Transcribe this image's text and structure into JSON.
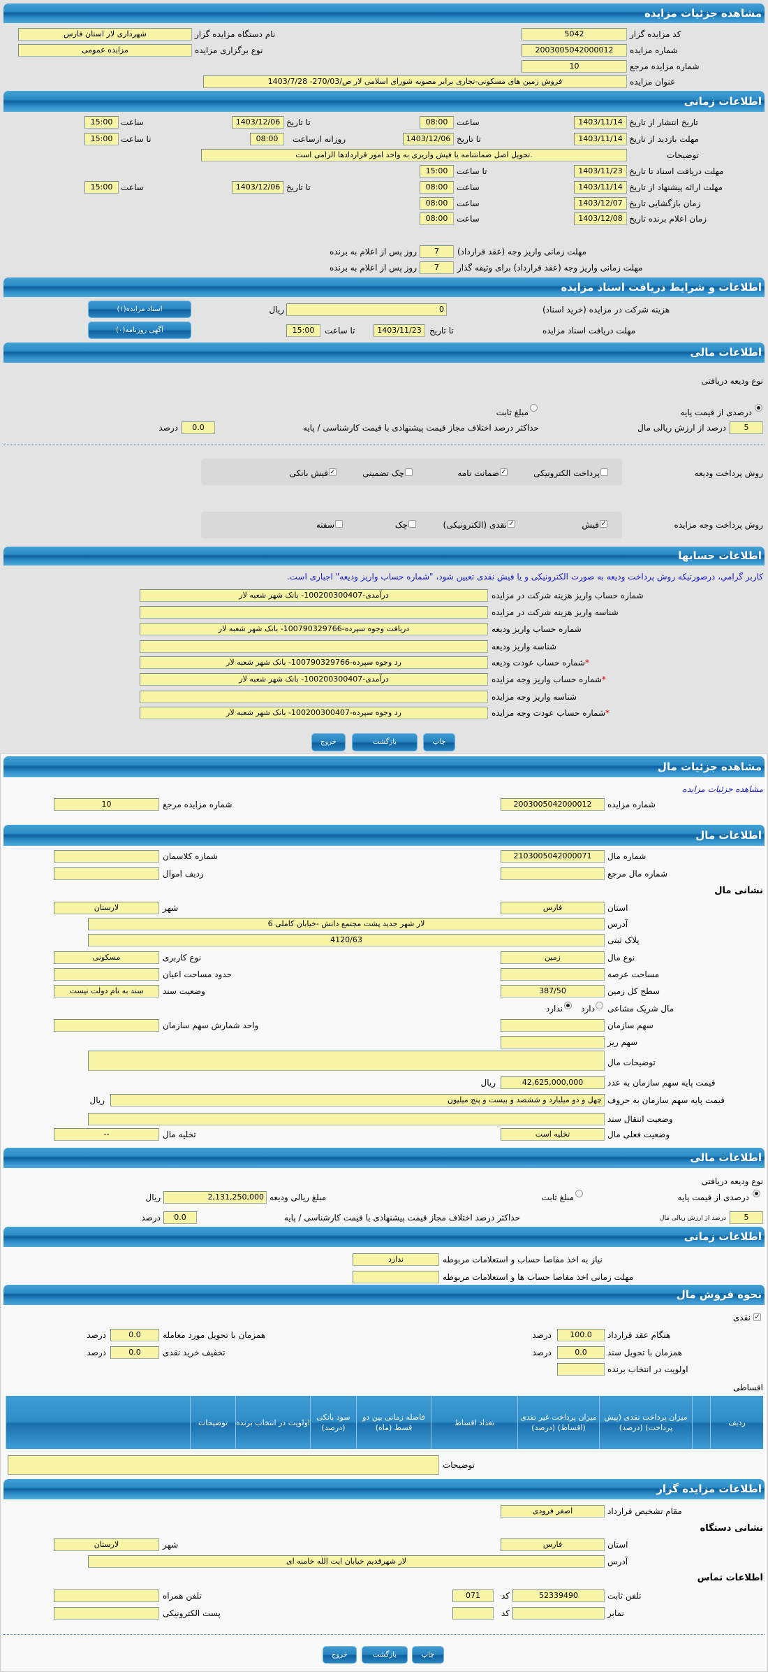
{
  "auction": {
    "title": "مشاهده جزئیات مزایده",
    "code_label": "کد مزایده گزار",
    "code": "5042",
    "org_label": "نام دستگاه مزایده گزار",
    "org": "شهرداری لار استان فارس",
    "number_label": "شماره مزایده",
    "number": "2003005042000012",
    "type_label": "نوع برگزاری مزایده",
    "type": "مزایده عمومی",
    "ref_label": "شماره مزایده مرجع",
    "ref": "10",
    "subject_label": "عنوان مزایده",
    "subject": "فروش زمین های مسکونی-تجاری برابر مصوبه شورای اسلامی لار ص/270/03- 1403/7/28"
  },
  "timing": {
    "title": "اطلاعات زمانی",
    "time_label": "ساعت",
    "to_date_label": "تا تاریخ",
    "to_time_label": "تا ساعت",
    "daily_from_label": "روزانه ازساعت",
    "publish_label": "تاریخ انتشار  از تاریخ",
    "publish_from": "1403/11/14",
    "publish_from_time": "08:00",
    "publish_to": "1403/12/06",
    "publish_to_time": "15:00",
    "visit_label": "مهلت بازدید  از تاریخ",
    "visit_from": "1403/11/14",
    "visit_to": "1403/12/06",
    "visit_daily_from": "08:00",
    "visit_daily_to": "15:00",
    "desc_label": "توضیحات",
    "desc": ".تحویل اصل ضمانتنامه  یا فیش واریزی به واحد امور قراردادها الزامی است",
    "docs_label": "مهلت دریافت اسناد  تا تاریخ",
    "docs_to": "1403/11/23",
    "docs_time": "15:00",
    "offer_label": "مهلت ارائه پیشنهاد  از تاریخ",
    "offer_from": "1403/11/14",
    "offer_from_time": "08:00",
    "offer_to": "1403/12/06",
    "offer_to_time": "15:00",
    "opening_label": "زمان بازگشایی   تاریخ",
    "opening_date": "1403/12/07",
    "opening_time": "08:00",
    "winner_label": "زمان اعلام برنده   تاریخ",
    "winner_date": "1403/12/08",
    "winner_time": "08:00",
    "pay_contract_label": "مهلت زمانی واریز وجه (عقد قرارداد)",
    "pay_contract_days": "7",
    "pay_collateral_label": "مهلت زمانی واریز وجه (عقد قرارداد) برای وثیقه گذار",
    "pay_collateral_days": "7",
    "days_after_label": "روز پس از اعلام به برنده"
  },
  "docs": {
    "title": "اطلاعات و شرایط دریافت اسناد مزایده",
    "fee_label": "هزینه شرکت در مزایده (خرید اسناد)",
    "fee": "0",
    "rial": "ریال",
    "deadline_label": "مهلت دریافت اسناد مزایده",
    "to_date": "تا تاریخ",
    "date": "1403/11/23",
    "to_time": "تا ساعت",
    "time": "15:00",
    "btn_docs": "اسناد مزایده(۱)",
    "btn_ads": "آگهی روزنامه(۰)"
  },
  "finance": {
    "title": "اطلاعات مالی",
    "deposit_type_label": "نوع ودیعه دریافتی",
    "percent_option": "درصدی از قیمت پایه",
    "percent_selected": true,
    "fixed_option": "مبلغ ثابت",
    "percent": "5",
    "percent_suffix": "درصد از ارزش ریالی مال",
    "max_diff_label": "حداکثر درصد اختلاف مجاز قیمت پیشنهادی با قیمت کارشناسی / پایه",
    "max_diff": "0.0",
    "percent_unit": "درصد",
    "deposit_method_label": "روش پرداخت ودیعه",
    "deposit_methods": [
      {
        "label": "پرداخت الکترونیکی",
        "checked": false
      },
      {
        "label": "ضمانت نامه",
        "checked": true
      },
      {
        "label": "چک تضمینی",
        "checked": false
      },
      {
        "label": "فیش بانکی",
        "checked": true
      }
    ],
    "payment_method_label": "روش پرداخت وجه مزایده",
    "payment_methods": [
      {
        "label": "فیش",
        "checked": true
      },
      {
        "label": "نقدی (الکترونیکی)",
        "checked": true
      },
      {
        "label": "چک",
        "checked": false
      },
      {
        "label": "سفته",
        "checked": false
      }
    ]
  },
  "accounts": {
    "title": "اطلاعات حسابها",
    "notice": "کاربر گرامي، درصورتيکه روش پرداخت وديعه به صورت الکترونيکی و يا فيش نقدی تعيين شود، \"شماره حساب واريز وديعه\" اجباری است.",
    "rows": [
      {
        "label": "شماره حساب واریز هزینه شرکت در مزایده",
        "value": "درآمدی-100200300407- بانک شهر شعبه لار",
        "required": false
      },
      {
        "label": "شناسه واریز هزینه شرکت در مزایده",
        "value": "",
        "required": false
      },
      {
        "label": "شماره حساب واریز ودیعه",
        "value": "دریافت وجوه سپرده-100790329766- بانک شهر شعبه لار",
        "required": false
      },
      {
        "label": "شناسه واریز ودیعه",
        "value": "",
        "required": false
      },
      {
        "label": "شماره حساب عودت ودیعه",
        "value": "رد وجوه سپرده-100790329766- بانک شهر شعبه لار",
        "required": true
      },
      {
        "label": "شماره حساب واریز وجه مزایده",
        "value": "درآمدی-100200300407- بانک شهر شعبه لار",
        "required": true
      },
      {
        "label": "شناسه واریز وجه مزایده",
        "value": "",
        "required": false
      },
      {
        "label": "شماره حساب عودت وجه مزایده",
        "value": "رد وجوه سپرده-100200300407- بانک شهر شعبه لار",
        "required": true
      }
    ]
  },
  "buttons": {
    "print": "چاپ",
    "back": "بازگشت",
    "exit": "خروج"
  },
  "property": {
    "title": "مشاهده جزئیات مال",
    "link": "مشاهده جزئیات مزایده",
    "auction_number_label": "شماره مزایده",
    "auction_number": "2003005042000012",
    "ref_label": "شماره مزایده مرجع",
    "ref": "10",
    "info_title": "اطلاعات مال",
    "number_label": "شماره مال",
    "number": "2103005042000071",
    "classman_label": "شماره کلاسمان",
    "classman": "",
    "ref_item_label": "شماره مال مرجع",
    "ref_item": "",
    "asset_row_label": "ردیف اموال",
    "asset_row": "",
    "address_heading": "نشانی مال",
    "province_label": "استان",
    "province": "فارس",
    "city_label": "شهر",
    "city": "لارستان",
    "address_label": "آدرس",
    "address": "لار شهر جدید پشت مجتمع دانش -خیابان کاملی 6",
    "plaque_label": "پلاک ثبتی",
    "plaque": "4120/63",
    "type_label": "نوع مال",
    "type": "زمین",
    "usage_label": "نوع کاربری",
    "usage": "مسکونی",
    "lot_area_label": "مساحت عرصه",
    "lot_area": "",
    "building_area_label": "حدود مساحت اعیان",
    "building_area": "",
    "land_area_label": "سطح کل زمین",
    "land_area": "387/50",
    "deed_status_label": "وضعیت سند",
    "deed_status": "سند به نام دولت نیست",
    "shared_label": "مال شریک مشاعی",
    "shared_yes": "دارد",
    "shared_no": "ندارد",
    "shared": false,
    "org_share_label": "سهم سازمان",
    "org_share": "",
    "share_unit_label": "واحد شمارش سهم سازمان",
    "share_unit": "",
    "share_detail_label": "سهم ریز",
    "share_detail": "",
    "desc_label": "توضیحات مال",
    "desc": "",
    "price_number_label": "قیمت پایه سهم سازمان به عدد",
    "price_number": "42,625,000,000",
    "price_words_label": "قیمت پایه سهم سازمان به حروف",
    "price_words": "چهل و دو میلیارد و ششصد و بیست و پنج میلیون",
    "rial": "ریال",
    "transfer_label": "وضعیت انتقال سند",
    "transfer": "",
    "status_label": "وضعیت فعلی مال",
    "status": "تخلیه است",
    "evacuation_label": "تخلیه مال",
    "evacuation": "--"
  },
  "finance2": {
    "title": "اطلاعات مالی",
    "deposit_type_label": "نوع ودیعه دریافتی",
    "percent_option": "درصدی از قیمت پایه",
    "percent_selected": true,
    "fixed_option": "مبلغ ثابت",
    "deposit_amount_label": "مبلغ ریالی ودیعه",
    "deposit_amount": "2,131,250,000",
    "rial": "ریال",
    "percent": "5",
    "percent_suffix": "درصد از ارزش ریالی مال",
    "max_diff_label": "حداکثر درصد اختلاف مجاز قیمت پیشنهادی با قیمت کارشناسی / پایه",
    "max_diff": "0.0",
    "percent_unit": "درصد"
  },
  "timing2": {
    "title": "اطلاعات زمانی",
    "clearance_label": "نیاز به اخذ مفاصا حساب و استعلامات مربوطه",
    "clearance": "ندارد",
    "clearance_deadline_label": "مهلت زمانی اخذ مفاصا حساب ها و استعلامات مربوطه",
    "clearance_deadline": ""
  },
  "sale": {
    "title": "نحوه فروش مال",
    "cash_label": "نقدی",
    "cash_checked": true,
    "percent_unit": "درصد",
    "at_contract_label": "هنگام عقد قرارداد",
    "at_contract": "100.0",
    "with_delivery_label": "همزمان با تحویل مورد معامله",
    "with_delivery": "0.0",
    "with_deed_label": "همزمان با تحویل سند",
    "with_deed": "0.0",
    "cash_discount_label": "تخفیف خرید نقدی",
    "cash_discount": "0.0",
    "priority_label": "اولویت در انتخاب برنده",
    "priority": "",
    "installments_label": "اقساطی",
    "columns": [
      "ردیف",
      "",
      "میزان پرداخت نقدی (پیش پرداخت) (درصد)",
      "میزان پرداخت غیر نقدی (اقساط) (درصد)",
      "تعداد اقساط",
      "فاصله زمانی بین دو قسط (ماه)",
      "سود بانکی (درصد)",
      "اولویت در انتخاب برنده",
      "توضیحات",
      ""
    ],
    "desc_label": "توضیحات",
    "desc": ""
  },
  "auctioneer": {
    "title": "اطلاعات مزایده گزار",
    "authority_label": "مقام تشخیص قرارداد",
    "authority": "اصغر فرودی",
    "address_heading": "نشانی دستگاه",
    "province_label": "استان",
    "province": "فارس",
    "city_label": "شهر",
    "city": "لارستان",
    "address_label": "آدرس",
    "address": "لار شهرقدیم خیابان ایت الله خامنه ای",
    "contact_heading": "اطلاعات تماس",
    "phone_label": "تلفن ثابت",
    "phone": "52339490",
    "code_label": "کد",
    "phone_code": "071",
    "mobile_label": "تلفن همراه",
    "mobile": "",
    "fax_label": "نمابر",
    "fax": "",
    "fax_code": "",
    "email_label": "پست الکترونیکی",
    "email": ""
  }
}
